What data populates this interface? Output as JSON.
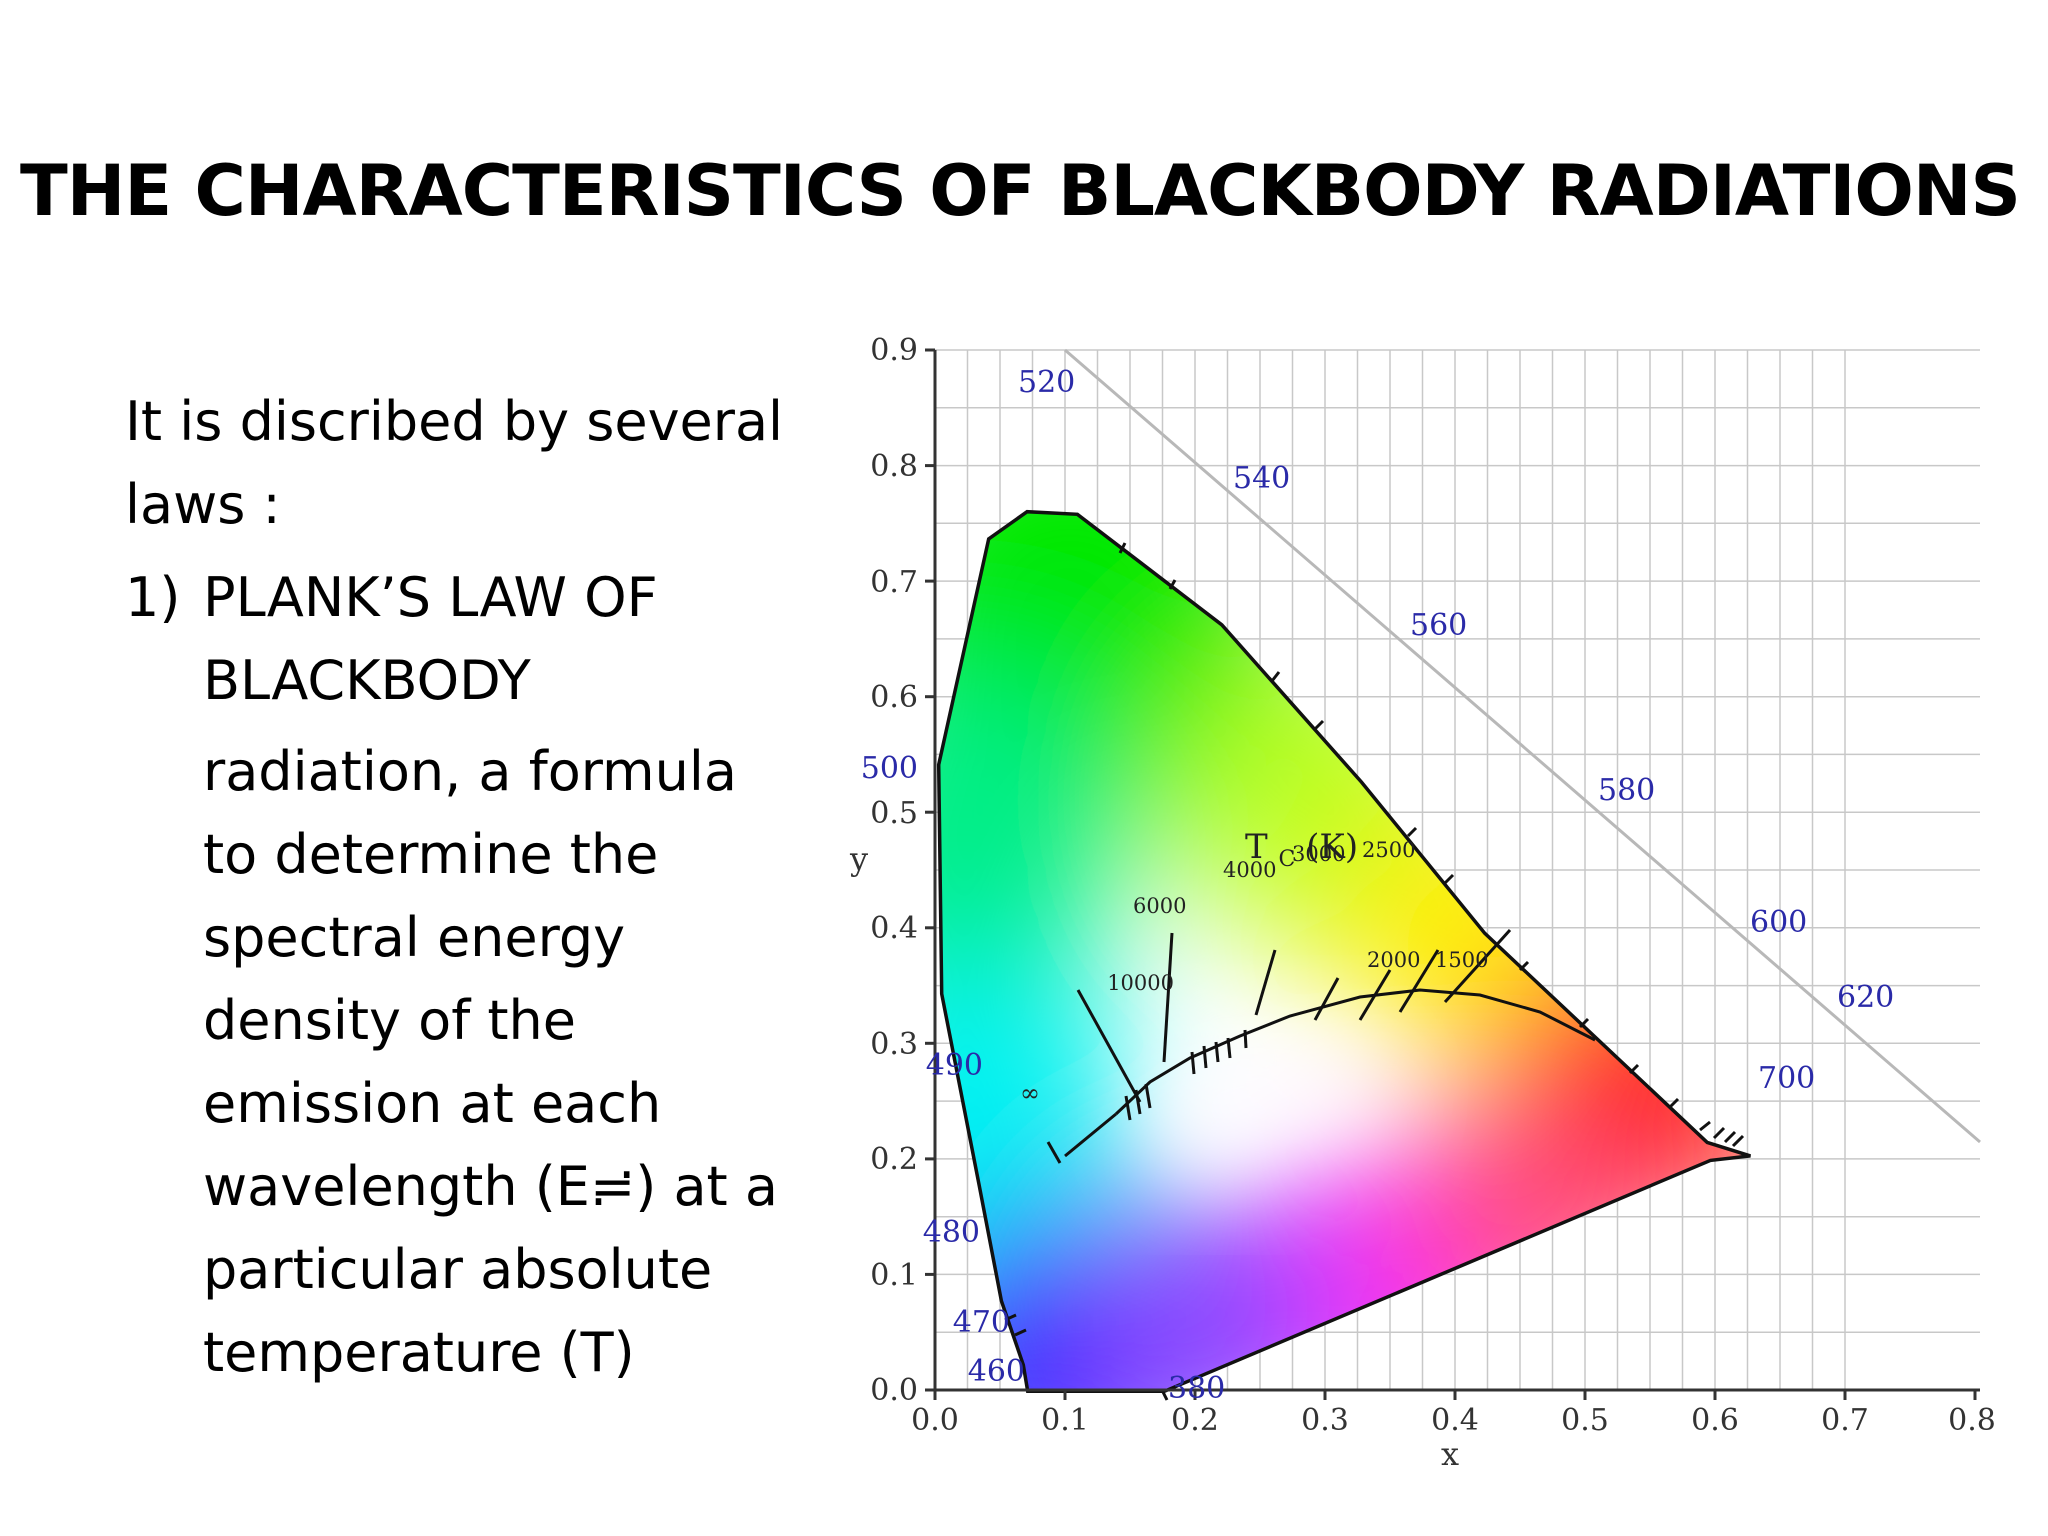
{
  "slide": {
    "title": "THE CHARACTERISTICS OF BLACKBODY RADIATIONS",
    "intro": "It is discribed by several laws :",
    "list": [
      {
        "number": "1)",
        "heading": "PLANK’S  LAW  OF BLACKBODY",
        "description": "radiation, a formula to determine the spectral energy density of the emission at each wavelength (E≓) at a particular absolute temperature (T)"
      }
    ]
  },
  "diagram": {
    "x_axis_label": "x",
    "y_axis_label": "y",
    "x_ticks": [
      "0.0",
      "0.1",
      "0.2",
      "0.3",
      "0.4",
      "0.5",
      "0.6",
      "0.7",
      "0.8"
    ],
    "y_ticks": [
      "0.0",
      "0.1",
      "0.2",
      "0.3",
      "0.4",
      "0.5",
      "0.6",
      "0.7",
      "0.8",
      "0.9"
    ],
    "wavelength_labels": [
      "380",
      "460",
      "470",
      "480",
      "490",
      "500",
      "520",
      "540",
      "560",
      "580",
      "600",
      "620",
      "700"
    ],
    "locus_title_main": "T",
    "locus_title_sub": "C",
    "locus_title_unit": "(K)",
    "temperature_labels": [
      "10000",
      "6000",
      "4000",
      "3000",
      "2500",
      "2000",
      "1500",
      "∞"
    ],
    "colors": {
      "wavelength_label": "#2a2aa8",
      "grid": "#c8c8c8",
      "axis": "#333333"
    }
  }
}
